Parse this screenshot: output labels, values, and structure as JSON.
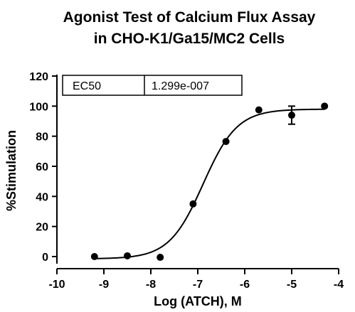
{
  "chart_data": {
    "type": "scatter",
    "title": [
      "Agonist Test of Calcium Flux Assay",
      "in CHO-K1/Ga15/MC2 Cells"
    ],
    "xlabel": "Log (ATCH), M",
    "ylabel": "%Stimulation",
    "xlim": [
      -10,
      -4
    ],
    "ylim": [
      0,
      120
    ],
    "xticks": [
      -10,
      -9,
      -8,
      -7,
      -6,
      -5,
      -4
    ],
    "yticks": [
      0,
      20,
      40,
      60,
      80,
      100,
      120
    ],
    "points": [
      {
        "x": -9.2,
        "y": 0
      },
      {
        "x": -8.5,
        "y": 0.5
      },
      {
        "x": -7.8,
        "y": -0.5
      },
      {
        "x": -7.1,
        "y": 35
      },
      {
        "x": -6.4,
        "y": 76.5
      },
      {
        "x": -5.7,
        "y": 97.5
      },
      {
        "x": -5.0,
        "y": 94,
        "err": 6
      },
      {
        "x": -4.3,
        "y": 100
      }
    ],
    "fit": {
      "model": "sigmoidal dose-response",
      "bottom": -1.5,
      "top": 98,
      "logEC50": -6.886,
      "hill": 1.2,
      "x_range": [
        -9.2,
        -4.3
      ]
    },
    "ec50_table": {
      "label": "EC50",
      "value": "1.299e-007"
    }
  }
}
